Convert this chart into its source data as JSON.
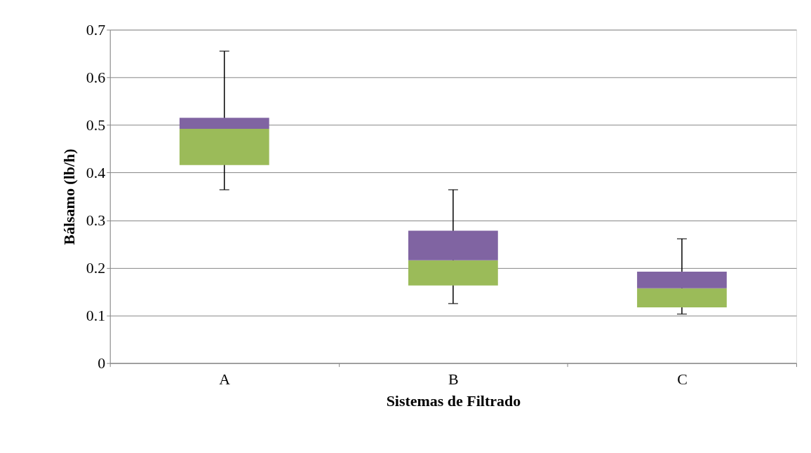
{
  "chart_data": {
    "type": "box",
    "xlabel": "Sistemas de Filtrado",
    "ylabel": "Bálsamo (lb/h)",
    "categories": [
      "A",
      "B",
      "C"
    ],
    "colors": [
      "#8064a2",
      "#8064a2",
      "#8064a2"
    ],
    "series": [
      {
        "color": "#9bbb59",
        "boxes": [
          {
            "low": 0.364,
            "q1": 0.416,
            "median": 0.492,
            "q3": 0.515,
            "high": 0.655
          },
          {
            "low": 0.125,
            "q1": 0.163,
            "median": 0.216,
            "q3": 0.278,
            "high": 0.364
          },
          {
            "low": 0.103,
            "q1": 0.117,
            "median": 0.157,
            "q3": 0.192,
            "high": 0.261
          }
        ]
      }
    ],
    "ylim": [
      0,
      0.7
    ],
    "yticks": [
      0,
      0.1,
      0.2,
      0.3,
      0.4,
      0.5,
      0.6,
      0.7
    ],
    "grid": "y"
  }
}
